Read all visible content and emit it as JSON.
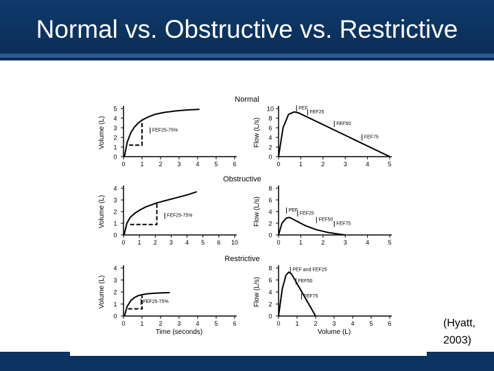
{
  "slide": {
    "title": "Normal vs. Obstructive vs. Restrictive",
    "citation": "(Hyatt,\n2003)"
  },
  "colors": {
    "title_bar": "#0f3a6b",
    "bottom_bar": "#0d3363",
    "curve": "#000000"
  },
  "chart_data": [
    {
      "type": "line",
      "panel": "normal-volume-time",
      "title": "Normal",
      "ylabel": "Volume (L)",
      "xlabel": "",
      "xlim": [
        0,
        6
      ],
      "ylim": [
        0,
        5
      ],
      "x_ticks": [
        "0",
        "1",
        "2",
        "3",
        "4",
        "5",
        "6"
      ],
      "y_ticks": [
        "0",
        "1",
        "2",
        "3",
        "4",
        "5"
      ],
      "series": [
        {
          "x": [
            0.05,
            0.2,
            0.4,
            0.6,
            0.8,
            1,
            1.3,
            1.7,
            2.2,
            2.8,
            3.4,
            4.1
          ],
          "y": [
            0,
            1.5,
            2.5,
            3.1,
            3.5,
            3.8,
            4.1,
            4.4,
            4.6,
            4.75,
            4.85,
            4.92
          ]
        }
      ],
      "annotations": [
        {
          "text": "FEF25-75%",
          "x": 1.55,
          "y": 2.6
        }
      ],
      "guides": {
        "x": [
          0.3,
          1.0
        ],
        "y": [
          1.2,
          3.8
        ]
      }
    },
    {
      "type": "line",
      "panel": "normal-flow-volume",
      "ylabel": "Flow (L/s)",
      "xlabel": "",
      "xlim": [
        0,
        5
      ],
      "ylim": [
        0,
        10
      ],
      "x_ticks": [
        "0",
        "1",
        "2",
        "3",
        "4",
        "5"
      ],
      "y_ticks": [
        "0",
        "2",
        "4",
        "6",
        "8",
        "10"
      ],
      "series": [
        {
          "x": [
            0,
            0.2,
            0.45,
            0.7,
            0.9,
            5
          ],
          "y": [
            0,
            6,
            8.8,
            9.3,
            9.1,
            0
          ]
        }
      ],
      "annotations": [
        {
          "text": "PEF",
          "x": 0.9,
          "y": 9.8
        },
        {
          "text": "FEF25",
          "x": 1.4,
          "y": 9.0
        },
        {
          "text": "FEF50",
          "x": 2.6,
          "y": 6.6
        },
        {
          "text": "FEF75",
          "x": 3.85,
          "y": 3.8
        }
      ]
    },
    {
      "type": "line",
      "panel": "obstructive-volume-time",
      "title": "Obstructive",
      "ylabel": "Volume (L)",
      "xlabel": "",
      "xlim": [
        0,
        10
      ],
      "ylim": [
        0,
        4
      ],
      "x_ticks": [
        "0",
        "1",
        "2",
        "3",
        "4",
        "5",
        "6",
        "10"
      ],
      "y_ticks": [
        "0",
        "1",
        "2",
        "3",
        "4"
      ],
      "series": [
        {
          "x": [
            0.05,
            0.3,
            0.6,
            1,
            1.5,
            2,
            3,
            4,
            5,
            5.8,
            6.6
          ],
          "y": [
            0,
            1.0,
            1.5,
            1.85,
            2.15,
            2.4,
            2.75,
            3.0,
            3.25,
            3.45,
            3.7
          ]
        }
      ],
      "annotations": [
        {
          "text": "FEF25-75%",
          "x": 3.9,
          "y": 1.55
        }
      ],
      "guides": {
        "x": [
          0.6,
          3.0
        ],
        "y": [
          0.9,
          2.75
        ]
      }
    },
    {
      "type": "line",
      "panel": "obstructive-flow-volume",
      "ylabel": "Flow (L/s)",
      "xlabel": "",
      "xlim": [
        0,
        5
      ],
      "ylim": [
        0,
        8
      ],
      "x_ticks": [
        "0",
        "1",
        "2",
        "3",
        "4",
        "5"
      ],
      "y_ticks": [
        "0",
        "2",
        "4",
        "6",
        "8"
      ],
      "series": [
        {
          "x": [
            0,
            0.15,
            0.35,
            0.5,
            0.8,
            1.2,
            1.7,
            2.2,
            2.7,
            3.0
          ],
          "y": [
            0,
            2.0,
            2.9,
            3.0,
            2.4,
            1.6,
            0.9,
            0.45,
            0.15,
            0
          ]
        }
      ],
      "annotations": [
        {
          "text": "PEF",
          "x": 0.45,
          "y": 4.0
        },
        {
          "text": "FEF25",
          "x": 0.95,
          "y": 3.5
        },
        {
          "text": "FEF50",
          "x": 1.8,
          "y": 2.4
        },
        {
          "text": "FEF75",
          "x": 2.6,
          "y": 1.7
        }
      ]
    },
    {
      "type": "line",
      "panel": "restrictive-volume-time",
      "title": "Restrictive",
      "ylabel": "Volume (L)",
      "xlabel": "Time (seconds)",
      "xlim": [
        0,
        6
      ],
      "ylim": [
        0,
        4
      ],
      "x_ticks": [
        "0",
        "1",
        "2",
        "3",
        "4",
        "5",
        "6"
      ],
      "y_ticks": [
        "0",
        "1",
        "2",
        "3",
        "4"
      ],
      "series": [
        {
          "x": [
            0.05,
            0.2,
            0.4,
            0.6,
            0.8,
            1,
            1.3,
            1.7,
            2.1,
            2.5
          ],
          "y": [
            0,
            0.8,
            1.3,
            1.55,
            1.7,
            1.78,
            1.85,
            1.9,
            1.93,
            1.95
          ]
        }
      ],
      "annotations": [
        {
          "text": "FEF25-75%",
          "x": 1.05,
          "y": 1.1
        }
      ],
      "guides": {
        "x": [
          0.25,
          1.0
        ],
        "y": [
          0.6,
          1.7
        ]
      }
    },
    {
      "type": "line",
      "panel": "restrictive-flow-volume",
      "ylabel": "Flow (L/s)",
      "xlabel": "Volume (L)",
      "xlim": [
        0,
        6
      ],
      "ylim": [
        0,
        8
      ],
      "x_ticks": [
        "0",
        "1",
        "2",
        "3",
        "4",
        "5",
        "6"
      ],
      "y_ticks": [
        "0",
        "2",
        "4",
        "6",
        "8"
      ],
      "series": [
        {
          "x": [
            0,
            0.2,
            0.4,
            0.55,
            0.7,
            2.0
          ],
          "y": [
            0,
            4.5,
            6.8,
            7.3,
            7.0,
            0
          ]
        }
      ],
      "annotations": [
        {
          "text": "PEF and FEF25",
          "x": 0.75,
          "y": 7.5
        },
        {
          "text": "FEF50",
          "x": 1.05,
          "y": 5.6
        },
        {
          "text": "FEF75",
          "x": 1.35,
          "y": 3.1
        }
      ]
    }
  ]
}
